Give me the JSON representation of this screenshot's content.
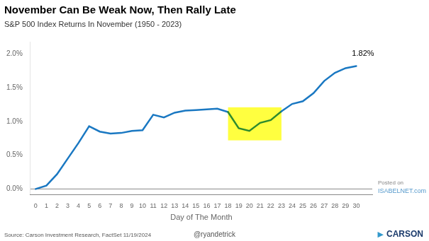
{
  "chart_data": {
    "type": "line",
    "title": "November Can Be Weak Now, Then Rally Late",
    "subtitle": "S&P 500 Index Returns In November (1950 - 2023)",
    "xlabel": "Day of The Month",
    "x": [
      0,
      1,
      2,
      3,
      4,
      5,
      6,
      7,
      8,
      9,
      10,
      11,
      12,
      13,
      14,
      15,
      16,
      17,
      18,
      19,
      20,
      21,
      22,
      23,
      24,
      25,
      26,
      27,
      28,
      29,
      30
    ],
    "values": [
      0.0,
      0.05,
      0.22,
      0.45,
      0.68,
      0.93,
      0.85,
      0.82,
      0.83,
      0.86,
      0.87,
      1.1,
      1.06,
      1.13,
      1.16,
      1.17,
      1.18,
      1.19,
      1.14,
      0.9,
      0.86,
      0.98,
      1.02,
      1.15,
      1.26,
      1.3,
      1.42,
      1.6,
      1.72,
      1.79,
      1.82
    ],
    "color": "#1a78c2",
    "segment": {
      "from": 18,
      "to": 23,
      "color": "#2e8b2e"
    },
    "highlight": {
      "x": [
        18,
        23
      ],
      "y": [
        0.72,
        1.21
      ],
      "color": "#FFFF00"
    },
    "reference_lines": [
      0
    ],
    "xlim": [
      -0.5,
      31.5
    ],
    "xticks": [
      0,
      1,
      2,
      3,
      4,
      5,
      6,
      7,
      8,
      9,
      10,
      11,
      12,
      13,
      14,
      15,
      16,
      17,
      18,
      19,
      20,
      21,
      22,
      23,
      24,
      25,
      26,
      27,
      28,
      29,
      30
    ],
    "ylim": [
      -0.08,
      2.18
    ],
    "yticks": [
      {
        "value": 0.0,
        "label": "0.0%"
      },
      {
        "value": 0.5,
        "label": "0.5%"
      },
      {
        "value": 1.0,
        "label": "1.0%"
      },
      {
        "value": 1.5,
        "label": "1.5%"
      },
      {
        "value": 2.0,
        "label": "2.0%"
      }
    ],
    "grid": false,
    "annotations": [
      {
        "text": "1.82%",
        "x": 29.6,
        "y": 1.97
      }
    ],
    "footer": {
      "source": "Source: Carson Investment Research, FactSet 11/19/2024",
      "handle": "@ryandetrick",
      "posted": "Posted on",
      "site": "ISABELNET.com",
      "site_color": "#5599cc",
      "logo": "▶",
      "logo_color": "#3399cc",
      "brand": "CARSON",
      "brand_color": "#1a3a6b"
    }
  }
}
